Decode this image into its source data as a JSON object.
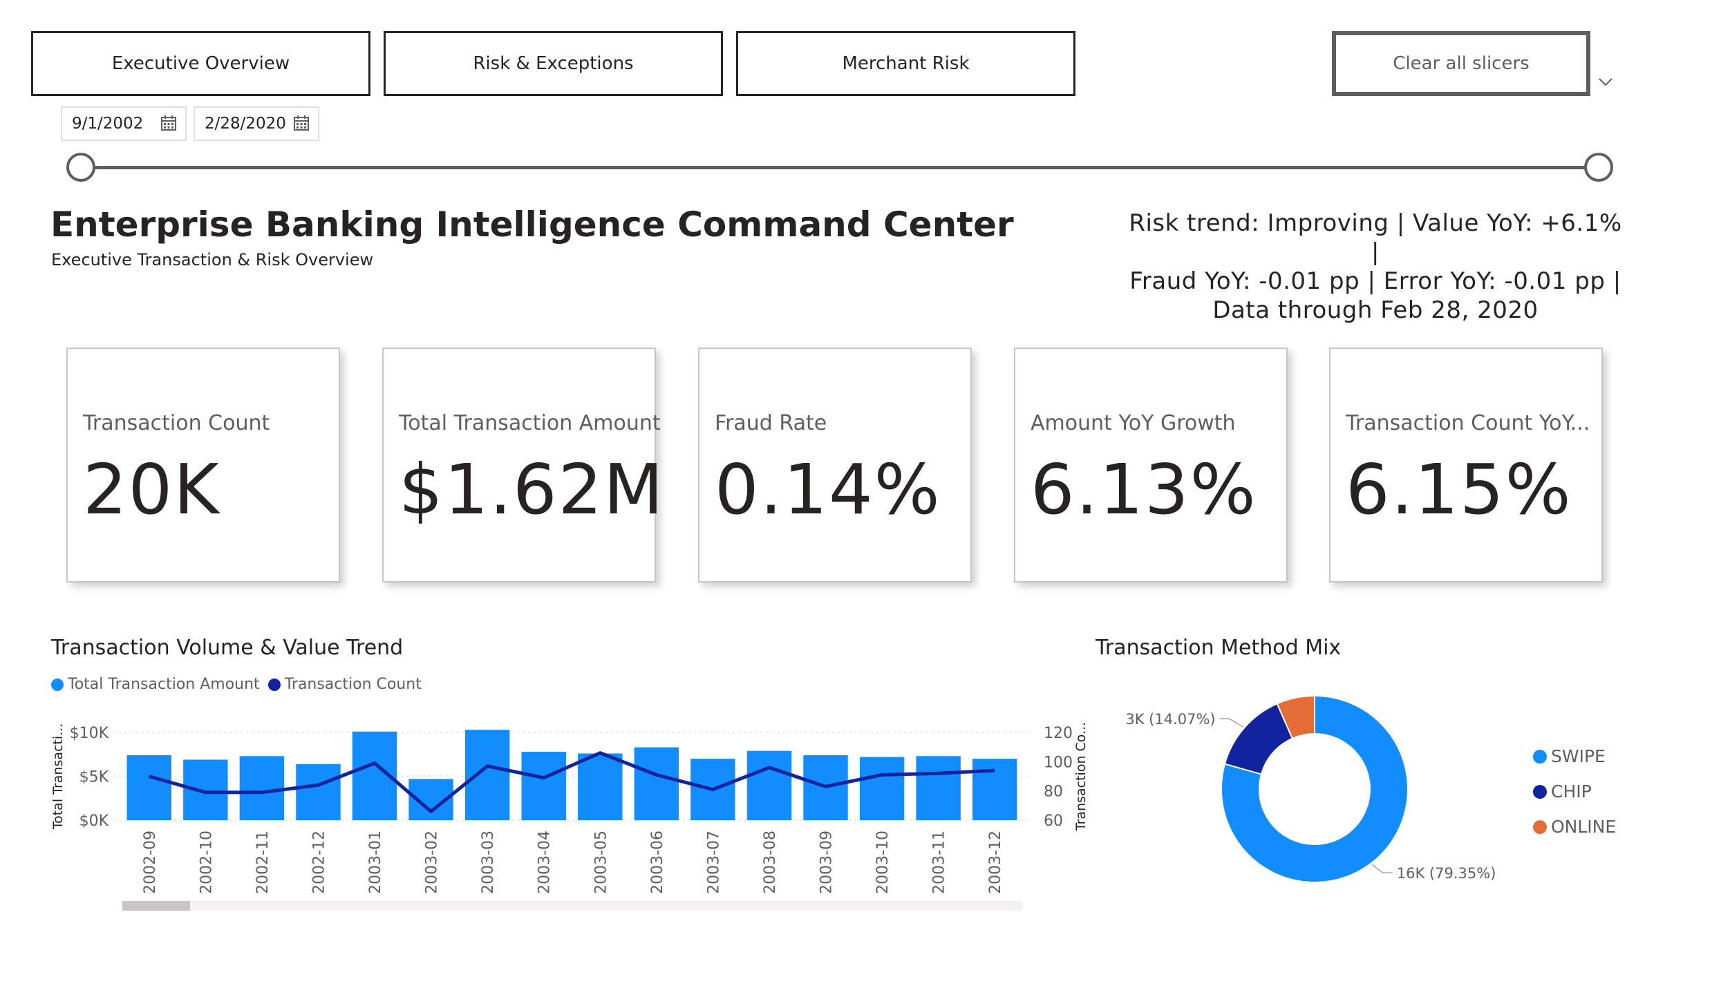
{
  "nav": {
    "tabs": [
      {
        "label": "Executive Overview",
        "active": true
      },
      {
        "label": "Risk & Exceptions",
        "active": false
      },
      {
        "label": "Merchant Risk",
        "active": false
      }
    ],
    "clear_label": "Clear all slicers"
  },
  "date_filter": {
    "start": "9/1/2002",
    "end": "2/28/2020",
    "icon": "calendar-icon"
  },
  "header": {
    "title": "Enterprise Banking Intelligence Command Center",
    "subtitle": "Executive Transaction & Risk Overview",
    "narrative_line1": "Risk trend: Improving | Value YoY: +6.1% |",
    "narrative_line2": "Fraud YoY: -0.01 pp | Error YoY: -0.01 pp |",
    "narrative_line3": "Data through Feb 28, 2020"
  },
  "kpis": [
    {
      "label": "Transaction Count",
      "value": "20K"
    },
    {
      "label": "Total Transaction Amount",
      "value": "$1.62M"
    },
    {
      "label": "Fraud Rate",
      "value": "0.14%"
    },
    {
      "label": "Amount YoY Growth",
      "value": "6.13%"
    },
    {
      "label": "Transaction Count YoY...",
      "value": "6.15%"
    }
  ],
  "colors": {
    "primary_blue": "#118DFF",
    "dark_blue": "#12239E",
    "orange": "#E66C37",
    "text_dark": "#252423",
    "text_mid": "#605e5c"
  },
  "chart_data": [
    {
      "type": "bar",
      "title": "Transaction Volume & Value Trend",
      "legend_position": "top-left",
      "categories": [
        "2002-09",
        "2002-10",
        "2002-11",
        "2002-12",
        "2003-01",
        "2003-02",
        "2003-03",
        "2003-04",
        "2003-05",
        "2003-06",
        "2003-07",
        "2003-08",
        "2003-09",
        "2003-10",
        "2003-11",
        "2003-12"
      ],
      "series": [
        {
          "name": "Total Transaction Amount",
          "kind": "bar",
          "axis": "left",
          "values": [
            7400,
            6900,
            7300,
            6400,
            10100,
            4700,
            10300,
            7800,
            7600,
            8300,
            7000,
            7900,
            7400,
            7200,
            7300,
            7000
          ]
        },
        {
          "name": "Transaction Count",
          "kind": "line",
          "axis": "right",
          "values": [
            90,
            79,
            79,
            84,
            99,
            66,
            97,
            89,
            106,
            91,
            81,
            96,
            83,
            91,
            92,
            94
          ]
        }
      ],
      "ylabel": "Total Transacti...",
      "y2label": "Transaction Co...",
      "ylim": [
        0,
        10000
      ],
      "yticks": [
        "$0K",
        "$5K",
        "$10K"
      ],
      "y2lim": [
        60,
        120
      ],
      "y2ticks": [
        "60",
        "80",
        "100",
        "120"
      ],
      "grid": true
    },
    {
      "type": "pie",
      "variant": "donut",
      "title": "Transaction Method Mix",
      "legend_position": "right",
      "slices": [
        {
          "name": "SWIPE",
          "percent": 79.35,
          "label": "16K (79.35%)"
        },
        {
          "name": "CHIP",
          "percent": 14.07,
          "label": "3K (14.07%)"
        },
        {
          "name": "ONLINE",
          "percent": 6.58
        }
      ]
    }
  ]
}
